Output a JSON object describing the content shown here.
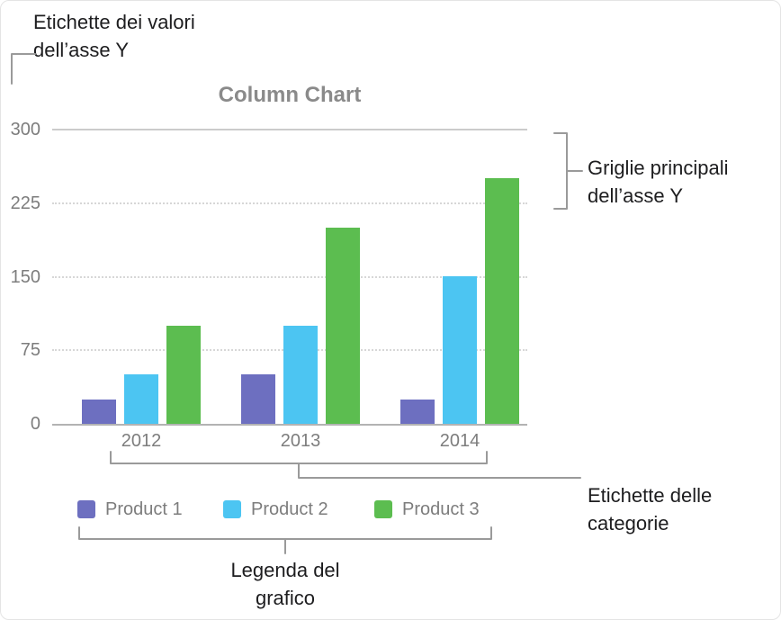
{
  "annotations": {
    "y_value_labels": {
      "line1": "Etichette dei valori",
      "line2": "dell’asse Y"
    },
    "y_gridlines": {
      "line1": "Griglie principali",
      "line2": "dell’asse Y"
    },
    "category_labels": {
      "line1": "Etichette delle",
      "line2": "categorie"
    },
    "legend": {
      "line1": "Legenda del",
      "line2": "grafico"
    }
  },
  "chart_data": {
    "type": "bar",
    "title": "Column Chart",
    "categories": [
      "2012",
      "2013",
      "2014"
    ],
    "series": [
      {
        "name": "Product 1",
        "color": "#6d6fc0",
        "values": [
          25,
          50,
          25
        ]
      },
      {
        "name": "Product 2",
        "color": "#4cc5f2",
        "values": [
          50,
          100,
          150
        ]
      },
      {
        "name": "Product 3",
        "color": "#5cbd50",
        "values": [
          100,
          200,
          250
        ]
      }
    ],
    "y_ticks": [
      300,
      225,
      150,
      75,
      0
    ],
    "ylim": [
      0,
      300
    ],
    "grid": "dotted horizontal major gridlines, solid top line and solid baseline",
    "legend_position": "bottom"
  },
  "style": {
    "bracket_color": "#9a9a9a",
    "annotation_text_color": "#1d1d1f",
    "axis_text_color": "#7d7d7d",
    "title_color": "#8a8a8a"
  }
}
